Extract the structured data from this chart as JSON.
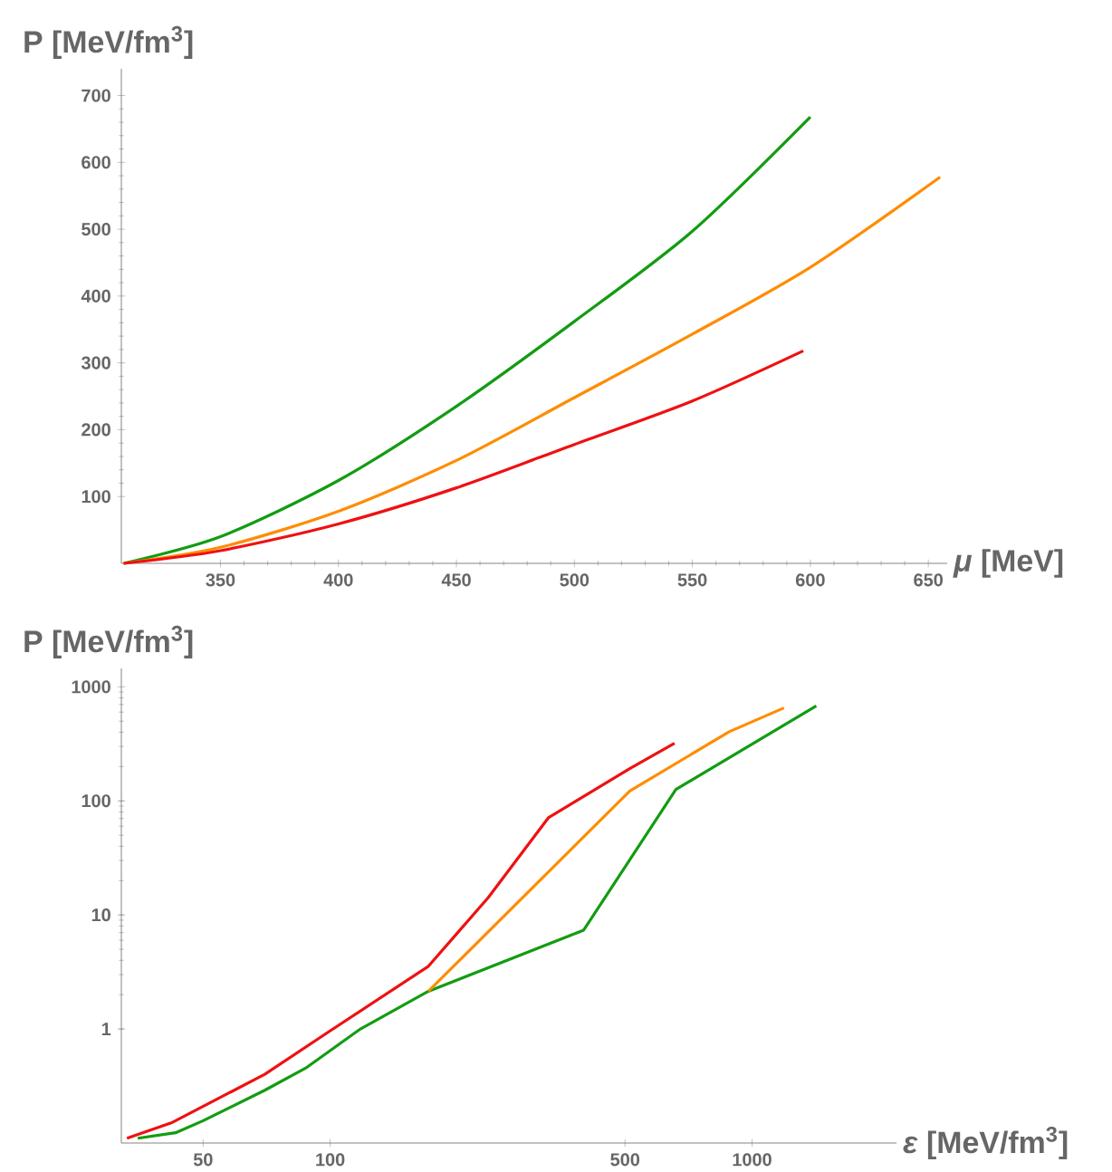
{
  "chart_data": [
    {
      "type": "line",
      "xlabel": "*μ* [MeV]",
      "ylabel": "P [MeV/fm$^{3}$]",
      "xlim": [
        308,
        658
      ],
      "ylim": [
        0,
        740
      ],
      "xticks": [
        350,
        400,
        450,
        500,
        550,
        600,
        650
      ],
      "yticks": [
        100,
        200,
        300,
        400,
        500,
        600,
        700
      ],
      "series": [
        {
          "color": "#129c12",
          "x": [
            309,
            350,
            400,
            450,
            500,
            550,
            600
          ],
          "values": [
            0,
            40,
            124,
            235,
            362,
            497,
            668
          ]
        },
        {
          "color": "#ff8c00",
          "x": [
            309,
            350,
            400,
            450,
            500,
            550,
            600,
            655
          ],
          "values": [
            0,
            24,
            78,
            154,
            248,
            343,
            443,
            578
          ]
        },
        {
          "color": "#ee1111",
          "x": [
            309,
            350,
            400,
            450,
            500,
            550,
            597
          ],
          "values": [
            0,
            19,
            59,
            113,
            178,
            243,
            318
          ]
        }
      ]
    },
    {
      "type": "line",
      "log": "xy",
      "xlabel": "*ε* [MeV/fm$^{3}$]",
      "ylabel": "P [MeV/fm$^{3}$]",
      "xlim": [
        32,
        2200
      ],
      "ylim": [
        0.1,
        1450
      ],
      "xticks": [
        50,
        100,
        500,
        1000
      ],
      "yticks": [
        1,
        10,
        100,
        1000
      ],
      "series": [
        {
          "color": "#129c12",
          "x": [
            35,
            43,
            50,
            70,
            88,
            118,
            171,
            399,
            660,
            1420
          ],
          "values": [
            0.11,
            0.123,
            0.157,
            0.29,
            0.46,
            1.0,
            2.14,
            7.35,
            126,
            680
          ]
        },
        {
          "color": "#ff8c00",
          "x": [
            171,
            513,
            883,
            1190
          ],
          "values": [
            2.14,
            122,
            404,
            653
          ]
        },
        {
          "color": "#ee1111",
          "x": [
            33,
            42,
            70,
            99,
            171,
            237,
            329,
            513,
            655
          ],
          "values": [
            0.11,
            0.15,
            0.4,
            0.94,
            3.55,
            14.2,
            71,
            192,
            320
          ]
        }
      ]
    }
  ]
}
